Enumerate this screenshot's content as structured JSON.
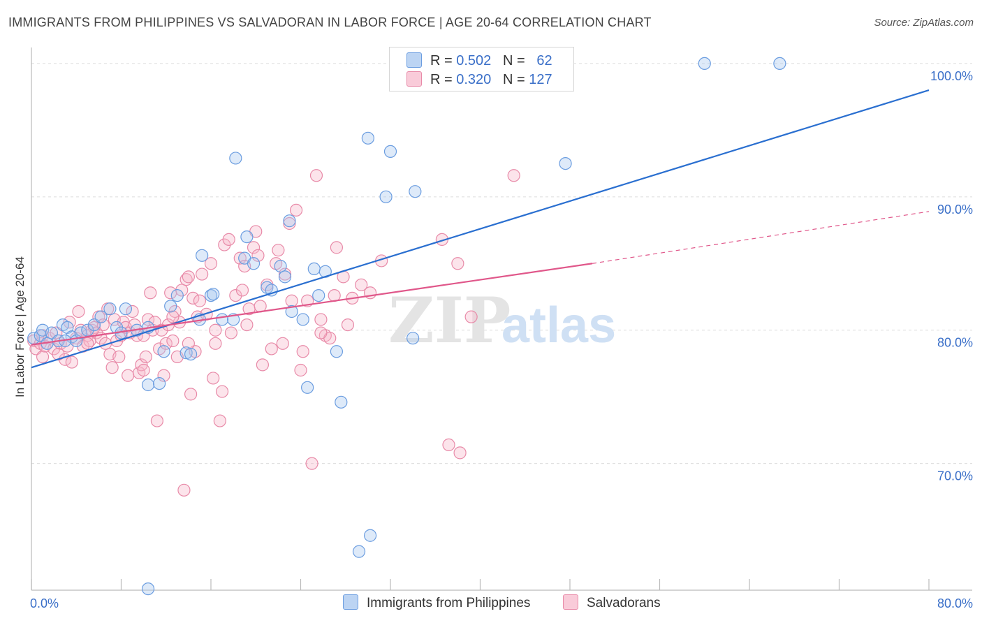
{
  "title": "IMMIGRANTS FROM PHILIPPINES VS SALVADORAN IN LABOR FORCE | AGE 20-64 CORRELATION CHART",
  "source": "Source: ZipAtlas.com",
  "watermark": {
    "zip": "ZIP",
    "atlas": "atlas"
  },
  "legend": {
    "r_label": "R =",
    "n_label": "N =",
    "rows": [
      {
        "r": "0.502",
        "n": "62"
      },
      {
        "r": "0.320",
        "n": "127"
      }
    ]
  },
  "colors": {
    "blue_fill": "#a9c8f0",
    "blue_stroke": "#6b9de0",
    "blue_line": "#2a6fd0",
    "pink_fill": "#f6b8cb",
    "pink_stroke": "#e88aa8",
    "pink_line": "#e0578a",
    "grid": "#dcdcdc",
    "tick_text": "#3a6fc8"
  },
  "chart_data": {
    "type": "scatter",
    "title": "IMMIGRANTS FROM PHILIPPINES VS SALVADORAN IN LABOR FORCE | AGE 20-64 CORRELATION CHART",
    "xlabel": "",
    "ylabel": "In Labor Force | Age 20-64",
    "xlim": [
      0,
      80
    ],
    "ylim": [
      60.5,
      101.2
    ],
    "x_tick_labels": [
      {
        "value": 0,
        "label": "0.0%"
      },
      {
        "value": 80,
        "label": "80.0%"
      }
    ],
    "y_ticks": [
      {
        "value": 100,
        "label": "100.0%"
      },
      {
        "value": 90,
        "label": "90.0%"
      },
      {
        "value": 80,
        "label": "80.0%"
      },
      {
        "value": 70,
        "label": "70.0%"
      }
    ],
    "grid": true,
    "legend_position": "top-center",
    "series": [
      {
        "name": "Immigrants from Philippines",
        "color": "#a9c8f0",
        "trend": {
          "x": [
            0,
            80
          ],
          "y": [
            77.2,
            98.0
          ],
          "dashed_to": null
        },
        "points": [
          [
            0.2,
            79.4
          ],
          [
            0.8,
            79.6
          ],
          [
            1.0,
            80.0
          ],
          [
            1.4,
            79.0
          ],
          [
            1.8,
            79.8
          ],
          [
            2.4,
            79.2
          ],
          [
            2.8,
            80.4
          ],
          [
            3.2,
            80.2
          ],
          [
            3.6,
            79.5
          ],
          [
            4.0,
            79.2
          ],
          [
            4.4,
            79.8
          ],
          [
            5.0,
            80.0
          ],
          [
            5.6,
            80.4
          ],
          [
            6.2,
            81.0
          ],
          [
            7.0,
            81.6
          ],
          [
            7.6,
            80.2
          ],
          [
            8.0,
            79.8
          ],
          [
            8.4,
            81.6
          ],
          [
            10.4,
            75.9
          ],
          [
            10.4,
            80.2
          ],
          [
            11.4,
            76.0
          ],
          [
            11.8,
            78.4
          ],
          [
            12.4,
            81.8
          ],
          [
            13.0,
            82.6
          ],
          [
            13.8,
            78.3
          ],
          [
            14.2,
            78.2
          ],
          [
            15.0,
            80.8
          ],
          [
            15.2,
            85.6
          ],
          [
            16.0,
            82.6
          ],
          [
            16.2,
            82.7
          ],
          [
            17.0,
            80.8
          ],
          [
            18.0,
            80.8
          ],
          [
            18.2,
            92.9
          ],
          [
            19.0,
            85.4
          ],
          [
            19.2,
            87.0
          ],
          [
            19.8,
            85.0
          ],
          [
            21.0,
            83.2
          ],
          [
            21.4,
            83.0
          ],
          [
            22.2,
            84.8
          ],
          [
            22.6,
            84.0
          ],
          [
            23.0,
            88.2
          ],
          [
            23.2,
            81.4
          ],
          [
            24.2,
            80.8
          ],
          [
            24.6,
            75.7
          ],
          [
            25.2,
            84.6
          ],
          [
            25.6,
            82.6
          ],
          [
            26.2,
            84.4
          ],
          [
            27.2,
            78.4
          ],
          [
            27.6,
            74.6
          ],
          [
            30.0,
            94.4
          ],
          [
            30.2,
            64.6
          ],
          [
            31.6,
            90.0
          ],
          [
            32.0,
            93.4
          ],
          [
            34.0,
            79.4
          ],
          [
            34.2,
            90.4
          ],
          [
            29.2,
            63.4
          ],
          [
            10.4,
            60.6
          ],
          [
            47.6,
            92.5
          ],
          [
            60.0,
            100.0
          ],
          [
            66.7,
            100.0
          ],
          [
            9.4,
            80.0
          ],
          [
            3.0,
            79.2
          ]
        ]
      },
      {
        "name": "Salvadorans",
        "color": "#f6b8cb",
        "trend": {
          "x": [
            0,
            50
          ],
          "y": [
            78.9,
            85.0
          ],
          "dashed_to": [
            80,
            88.9
          ]
        },
        "points": [
          [
            0.2,
            79.2
          ],
          [
            0.4,
            78.6
          ],
          [
            0.8,
            79.0
          ],
          [
            1.0,
            79.6
          ],
          [
            1.2,
            78.8
          ],
          [
            1.6,
            79.4
          ],
          [
            2.0,
            78.6
          ],
          [
            2.2,
            79.8
          ],
          [
            2.6,
            79.0
          ],
          [
            3.0,
            77.8
          ],
          [
            3.2,
            78.8
          ],
          [
            3.6,
            77.6
          ],
          [
            4.0,
            79.4
          ],
          [
            4.2,
            81.4
          ],
          [
            4.4,
            80.0
          ],
          [
            4.6,
            78.8
          ],
          [
            5.0,
            79.6
          ],
          [
            5.2,
            79.2
          ],
          [
            5.4,
            80.0
          ],
          [
            5.6,
            80.2
          ],
          [
            5.8,
            79.8
          ],
          [
            6.0,
            81.0
          ],
          [
            6.2,
            79.4
          ],
          [
            6.4,
            80.4
          ],
          [
            6.6,
            79.0
          ],
          [
            6.8,
            81.6
          ],
          [
            7.0,
            78.2
          ],
          [
            7.2,
            77.2
          ],
          [
            7.4,
            80.8
          ],
          [
            7.6,
            79.2
          ],
          [
            7.8,
            78.0
          ],
          [
            8.0,
            79.6
          ],
          [
            8.2,
            80.6
          ],
          [
            8.4,
            80.2
          ],
          [
            8.6,
            76.6
          ],
          [
            8.8,
            79.8
          ],
          [
            9.0,
            81.4
          ],
          [
            9.2,
            80.4
          ],
          [
            9.4,
            79.6
          ],
          [
            9.6,
            76.8
          ],
          [
            9.8,
            77.4
          ],
          [
            10.0,
            77.0
          ],
          [
            10.2,
            78.0
          ],
          [
            10.4,
            80.8
          ],
          [
            10.6,
            82.8
          ],
          [
            10.8,
            80.0
          ],
          [
            11.0,
            80.6
          ],
          [
            11.2,
            73.2
          ],
          [
            11.4,
            78.6
          ],
          [
            11.6,
            80.0
          ],
          [
            11.8,
            76.6
          ],
          [
            12.0,
            79.0
          ],
          [
            12.2,
            80.4
          ],
          [
            12.4,
            82.8
          ],
          [
            12.6,
            79.2
          ],
          [
            12.8,
            81.4
          ],
          [
            13.0,
            78.0
          ],
          [
            13.2,
            80.6
          ],
          [
            13.4,
            83.0
          ],
          [
            13.6,
            68.0
          ],
          [
            13.8,
            83.8
          ],
          [
            14.0,
            84.0
          ],
          [
            14.2,
            75.2
          ],
          [
            14.4,
            82.4
          ],
          [
            14.6,
            78.4
          ],
          [
            14.8,
            81.0
          ],
          [
            15.0,
            82.2
          ],
          [
            15.2,
            84.2
          ],
          [
            15.6,
            81.2
          ],
          [
            16.0,
            85.0
          ],
          [
            16.2,
            76.4
          ],
          [
            16.4,
            79.0
          ],
          [
            16.8,
            73.2
          ],
          [
            17.0,
            75.4
          ],
          [
            17.2,
            86.4
          ],
          [
            17.6,
            86.8
          ],
          [
            17.8,
            79.8
          ],
          [
            18.2,
            82.6
          ],
          [
            18.6,
            85.4
          ],
          [
            18.8,
            83.0
          ],
          [
            19.0,
            84.8
          ],
          [
            19.4,
            81.6
          ],
          [
            19.8,
            86.2
          ],
          [
            20.0,
            87.4
          ],
          [
            20.2,
            85.6
          ],
          [
            20.4,
            81.8
          ],
          [
            20.6,
            77.4
          ],
          [
            21.0,
            83.4
          ],
          [
            21.4,
            78.6
          ],
          [
            21.8,
            85.0
          ],
          [
            22.0,
            86.0
          ],
          [
            22.4,
            79.0
          ],
          [
            22.6,
            84.2
          ],
          [
            23.0,
            88.0
          ],
          [
            23.2,
            82.2
          ],
          [
            23.6,
            89.0
          ],
          [
            24.0,
            77.0
          ],
          [
            24.2,
            78.4
          ],
          [
            24.6,
            82.2
          ],
          [
            25.0,
            70.0
          ],
          [
            25.4,
            91.6
          ],
          [
            25.8,
            80.8
          ],
          [
            26.2,
            79.6
          ],
          [
            26.6,
            79.4
          ],
          [
            27.0,
            82.6
          ],
          [
            27.2,
            86.2
          ],
          [
            27.8,
            84.0
          ],
          [
            28.2,
            80.4
          ],
          [
            28.6,
            82.4
          ],
          [
            29.4,
            83.4
          ],
          [
            30.2,
            82.8
          ],
          [
            31.2,
            85.2
          ],
          [
            36.6,
            86.8
          ],
          [
            37.2,
            71.4
          ],
          [
            38.0,
            85.0
          ],
          [
            38.2,
            70.8
          ],
          [
            39.2,
            81.0
          ],
          [
            43.0,
            91.6
          ],
          [
            25.8,
            79.8
          ],
          [
            19.2,
            80.4
          ],
          [
            16.4,
            80.0
          ],
          [
            14.0,
            79.0
          ],
          [
            12.6,
            81.0
          ],
          [
            10.0,
            79.6
          ],
          [
            3.4,
            80.6
          ],
          [
            2.4,
            78.2
          ],
          [
            1.0,
            78.0
          ],
          [
            5.0,
            79.0
          ]
        ]
      }
    ]
  },
  "bottom_legend": [
    {
      "label": "Immigrants from Philippines"
    },
    {
      "label": "Salvadorans"
    }
  ]
}
